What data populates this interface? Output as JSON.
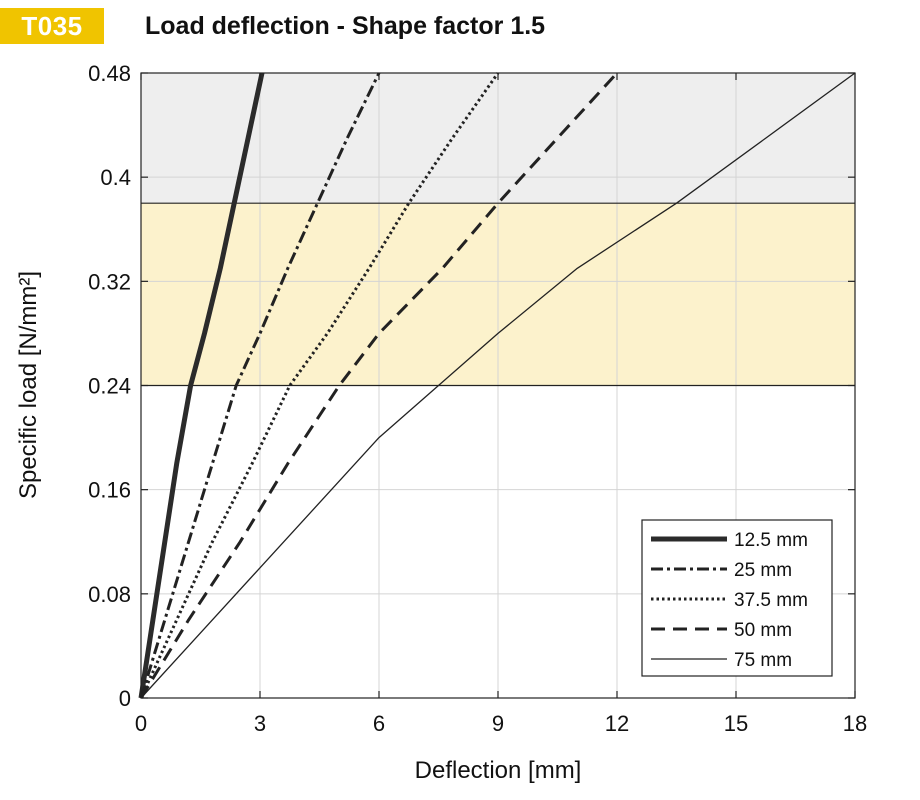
{
  "badge": "T035",
  "chart_data": {
    "type": "line",
    "title": "Load deflection - Shape factor 1.5",
    "xlabel": "Deflection  [mm]",
    "ylabel": "Specific load [N/mm²]",
    "xlim": [
      0,
      18
    ],
    "ylim": [
      0,
      0.48
    ],
    "xticks": [
      0,
      3,
      6,
      9,
      12,
      15,
      18
    ],
    "yticks": [
      0,
      0.08,
      0.16,
      0.24,
      0.32,
      0.4,
      0.48
    ],
    "xtick_labels": [
      "0",
      "3",
      "6",
      "9",
      "12",
      "15",
      "18"
    ],
    "ytick_labels": [
      "0",
      "0.08",
      "0.16",
      "0.24",
      "0.32",
      "0.4",
      "0.48"
    ],
    "grid": true,
    "bands": [
      {
        "name": "grey-zone",
        "y_from": 0.38,
        "y_to": 0.48,
        "color": "#eeeeee"
      },
      {
        "name": "yellow-zone",
        "y_from": 0.24,
        "y_to": 0.38,
        "color": "#fcf2cc"
      }
    ],
    "legend_position": "bottom-right",
    "series": [
      {
        "name": "12.5 mm",
        "style": "thick-solid",
        "x": [
          0,
          0.3,
          0.6,
          0.9,
          1.25,
          1.6,
          2.0,
          2.35,
          2.7,
          3.05
        ],
        "y": [
          0,
          0.06,
          0.12,
          0.18,
          0.24,
          0.28,
          0.33,
          0.38,
          0.43,
          0.48
        ]
      },
      {
        "name": "25 mm",
        "style": "dash-dot",
        "x": [
          0,
          0.6,
          1.2,
          1.8,
          2.4,
          3.0,
          3.7,
          4.45,
          5.2,
          6.0
        ],
        "y": [
          0,
          0.06,
          0.12,
          0.18,
          0.24,
          0.28,
          0.33,
          0.38,
          0.43,
          0.48
        ]
      },
      {
        "name": "37.5 mm",
        "style": "dotted",
        "x": [
          0,
          0.9,
          1.8,
          2.8,
          3.75,
          4.7,
          5.75,
          6.75,
          7.85,
          9.0
        ],
        "y": [
          0,
          0.06,
          0.12,
          0.18,
          0.24,
          0.28,
          0.33,
          0.38,
          0.43,
          0.48
        ]
      },
      {
        "name": "50 mm",
        "style": "dashed",
        "x": [
          0,
          1.2,
          2.5,
          3.7,
          5.0,
          6.0,
          7.6,
          9.0,
          10.5,
          12.0
        ],
        "y": [
          0,
          0.06,
          0.12,
          0.18,
          0.24,
          0.28,
          0.33,
          0.38,
          0.43,
          0.48
        ]
      },
      {
        "name": "75 mm",
        "style": "thin-solid",
        "x": [
          0,
          3.0,
          6.0,
          7.5,
          9.0,
          11.0,
          13.5,
          15.75,
          18.0
        ],
        "y": [
          0,
          0.1,
          0.2,
          0.24,
          0.28,
          0.33,
          0.38,
          0.43,
          0.48
        ]
      }
    ]
  },
  "colors": {
    "badge": "#f0c400",
    "grey_band": "#eeeeee",
    "yellow_band": "#fcf2cc",
    "line": "#222222"
  }
}
